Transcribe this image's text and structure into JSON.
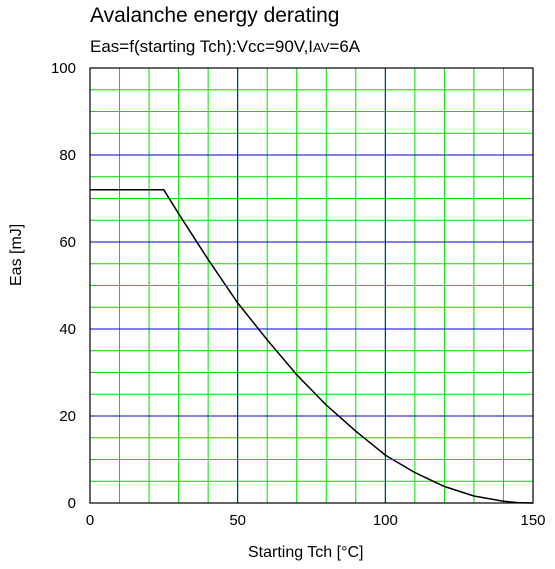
{
  "colors": {
    "minor_grid": "#00dd00",
    "major_grid": "#0000cc",
    "curve": "#000000",
    "frame": "#000000"
  },
  "chart_data": {
    "type": "line",
    "title": "Avalanche energy derating",
    "subtitle_parts": [
      "Eas=f(starting Tch):Vcc=90V,I",
      "AV",
      "=6A"
    ],
    "xlabel": "Starting Tch [°C]",
    "ylabel": "Eas [mJ]",
    "xlim": [
      0,
      150
    ],
    "ylim": [
      0,
      100
    ],
    "x_major_ticks": [
      0,
      50,
      100,
      150
    ],
    "y_major_ticks": [
      0,
      20,
      40,
      60,
      80,
      100
    ],
    "x_minor_step": 10,
    "y_minor_step": 5,
    "grid": true,
    "series": [
      {
        "x": [
          0,
          25,
          30,
          40,
          50,
          60,
          70,
          80,
          90,
          100,
          110,
          120,
          130,
          140,
          145,
          150
        ],
        "y": [
          72,
          72,
          66.5,
          56,
          46,
          37.5,
          29.5,
          22.5,
          16.5,
          11,
          7,
          3.8,
          1.6,
          0.4,
          0.1,
          0
        ]
      }
    ]
  }
}
